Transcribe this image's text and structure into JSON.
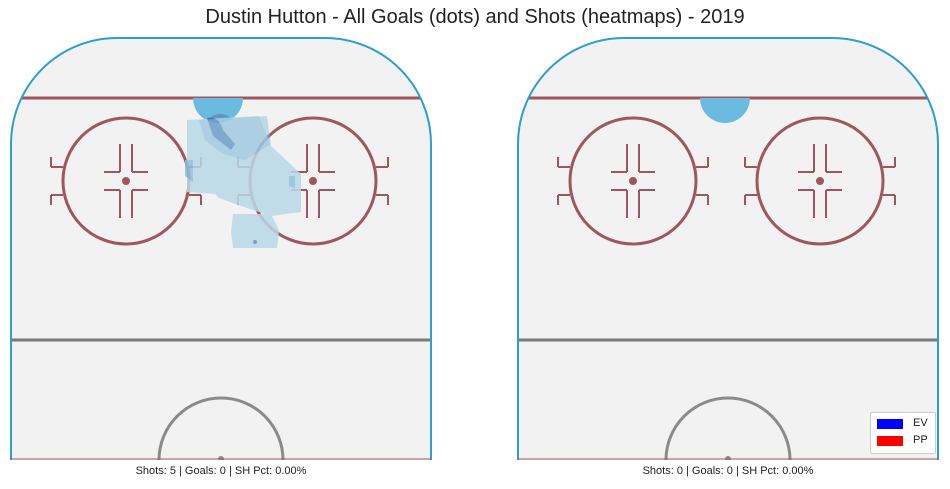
{
  "title": "Dustin Hutton - All Goals (dots) and Shots (heatmaps) - 2019",
  "colors": {
    "boards": "#2a9fd0",
    "ice": "#f2f2f2",
    "red_lines": "#a0565f",
    "center_line": "#7a7a7a",
    "heat_light": "#b9d9e8",
    "heat_mid": "#8fbfdc",
    "heat_dark": "#5f8fc4",
    "heat_darkest": "#3d6aa8",
    "crease": "#6bbbe0"
  },
  "chart_data": [
    {
      "type": "heatmap",
      "panel": "left",
      "caption": "Shots: 5 | Goals: 0 | SH Pct: 0.00%",
      "shots": 5,
      "goals": 0,
      "sh_pct": "0.00%",
      "goal_dots": [],
      "heat_regions": [
        {
          "name": "slot-top",
          "level": 4
        },
        {
          "name": "slot-middle",
          "level": 2
        },
        {
          "name": "slot-low",
          "level": 1
        },
        {
          "name": "faceoff-left-edge",
          "level": 1
        },
        {
          "name": "faceoff-right-edge",
          "level": 1
        }
      ]
    },
    {
      "type": "heatmap",
      "panel": "right",
      "caption": "Shots: 0 | Goals: 0 | SH Pct: 0.00%",
      "shots": 0,
      "goals": 0,
      "sh_pct": "0.00%",
      "goal_dots": [],
      "heat_regions": []
    }
  ],
  "legend": {
    "placement": "bottom-right",
    "items": [
      {
        "label": "EV",
        "color": "#0000ff"
      },
      {
        "label": "PP",
        "color": "#ff0000"
      }
    ]
  }
}
